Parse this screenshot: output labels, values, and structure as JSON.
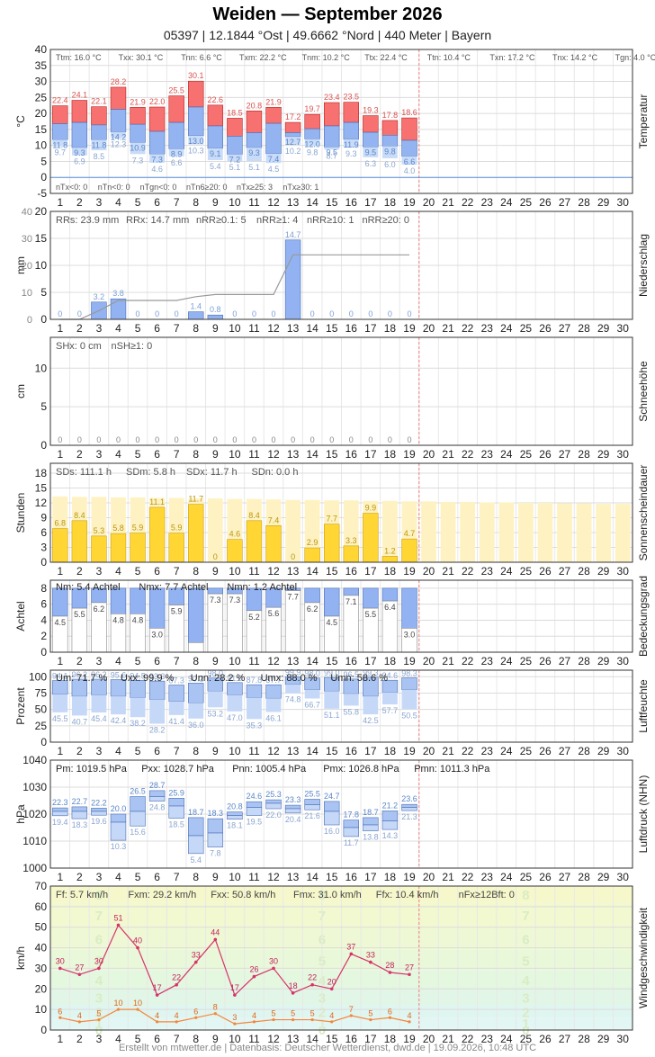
{
  "header": {
    "title": "Weiden  —  September 2026",
    "subtitle": "05397  |  12.1844 °Ost  |  49.6662 °Nord  |  440 Meter  |  Bayern"
  },
  "footer": "Erstellt von mtwetter.de | Datenbasis: Deutscher Wetterdienst, dwd.de | 19.09.2026, 10:48 UTC",
  "days": [
    "1",
    "2",
    "3",
    "4",
    "5",
    "6",
    "7",
    "8",
    "9",
    "10",
    "11",
    "12",
    "13",
    "14",
    "15",
    "16",
    "17",
    "18",
    "19",
    "20",
    "21",
    "22",
    "23",
    "24",
    "25",
    "26",
    "27",
    "28",
    "29",
    "30"
  ],
  "colors": {
    "temp_max": "#f87171",
    "temp_mid": "#93b4f0",
    "temp_min": "#c8dbf8",
    "precip": "#93b2f2",
    "sun": "#ffd633",
    "sun_pot": "#fff2c2",
    "cloud": "#93b2f2",
    "wind_mean": "#d6336c",
    "wind_gust_low": "#f4863c"
  },
  "chart_data": [
    {
      "type": "bar",
      "id": "temperatur",
      "ylabel": "°C",
      "side_label": "Temperatur",
      "ylim": [
        -5,
        40
      ],
      "yticks": [
        -5,
        0,
        5,
        10,
        15,
        20,
        25,
        30,
        35,
        40
      ],
      "stats_top": [
        "Ttm: 16.0 °C",
        "Txx: 30.1 °C",
        "Tnn: 6.6 °C",
        "Txm: 22.2 °C",
        "Tnm: 10.2 °C",
        "Ttx: 22.4 °C",
        "Ttn: 10.4 °C",
        "Txn: 17.2 °C",
        "Tnx: 14.2 °C",
        "Tgn: 4.0 °C"
      ],
      "stats_bottom": [
        "nTx<0: 0",
        "nTn<0: 0",
        "nTgn<0: 0",
        "nTn6≥20: 0",
        "nTx≥25: 3",
        "nTx≥30: 1"
      ],
      "tmax": [
        22.4,
        24.1,
        22.1,
        28.2,
        21.9,
        22.0,
        25.5,
        30.1,
        22.6,
        18.5,
        20.8,
        21.9,
        17.2,
        19.7,
        23.4,
        23.5,
        19.3,
        17.8,
        18.6
      ],
      "tmean": [
        16.8,
        17.2,
        16.4,
        21.3,
        16.6,
        14.4,
        17.2,
        22.0,
        16.1,
        12.9,
        14.0,
        16.9,
        14.0,
        15.2,
        16.1,
        17.2,
        14.1,
        13.2,
        11.6
      ],
      "tmin_label": [
        11.8,
        9.3,
        11.8,
        14.2,
        10.9,
        7.3,
        8.9,
        13.0,
        9.1,
        7.2,
        9.3,
        7.4,
        12.7,
        12.0,
        9.5,
        11.9,
        9.5,
        9.8,
        6.6
      ],
      "tmin_bar": [
        11.8,
        9.3,
        11.8,
        14.2,
        10.9,
        7.3,
        8.9,
        13.0,
        9.1,
        7.2,
        9.3,
        7.4,
        12.7,
        12.0,
        9.5,
        11.9,
        9.5,
        9.8,
        6.6
      ],
      "tground": [
        9.7,
        6.9,
        8.5,
        12.3,
        7.3,
        4.6,
        6.6,
        10.3,
        5.4,
        5.1,
        5.1,
        4.5,
        10.2,
        9.8,
        8.7,
        9.3,
        6.3,
        6.0,
        4.0
      ],
      "tmin_mark": [
        11.8,
        9.3,
        11.8,
        14.2,
        10.9,
        7.3,
        8.9,
        13.0,
        9.1,
        7.2,
        9.3,
        7.4,
        12.7,
        12.0,
        9.5,
        11.9,
        9.5,
        9.8,
        6.6
      ]
    },
    {
      "type": "bar",
      "id": "niederschlag",
      "ylabel": "mm",
      "side_label": "Niederschlag",
      "ylim": [
        0,
        20
      ],
      "yticks": [
        0,
        5,
        10,
        15,
        20
      ],
      "yticks_right": [
        0,
        10,
        20,
        30,
        40
      ],
      "stats_top": [
        "RRs: 23.9 mm",
        "RRx: 14.7 mm",
        "nRR≥0.1: 5",
        "nRR≥1: 4",
        "nRR≥10: 1",
        "nRR≥20: 0"
      ],
      "values": [
        0,
        0,
        3.2,
        3.8,
        0,
        0,
        0,
        1.4,
        0.8,
        0,
        0,
        0,
        14.7,
        0,
        0,
        0,
        0,
        0,
        0
      ],
      "cumulative": [
        0,
        0,
        3.2,
        7.0,
        7.0,
        7.0,
        7.0,
        8.4,
        9.2,
        9.2,
        9.2,
        9.2,
        23.9,
        23.9,
        23.9,
        23.9,
        23.9,
        23.9,
        23.9
      ]
    },
    {
      "type": "bar",
      "id": "schneehoehe",
      "ylabel": "cm",
      "side_label": "Schneehöhe",
      "ylim": [
        0,
        14
      ],
      "yticks": [
        0,
        5,
        10
      ],
      "stats_top": [
        "SHx: 0 cm",
        "nSH≥1: 0"
      ],
      "values": [
        0,
        0,
        0,
        0,
        0,
        0,
        0,
        0,
        0,
        0,
        0,
        0,
        0,
        0,
        0,
        0,
        0,
        0,
        0
      ]
    },
    {
      "type": "bar",
      "id": "sonnenscheindauer",
      "ylabel": "Stunden",
      "side_label": "Sonnenscheindauer",
      "ylim": [
        0,
        20
      ],
      "yticks": [
        0,
        3,
        6,
        9,
        12,
        15,
        18
      ],
      "stats_top": [
        "SDs: 111.1 h",
        "SDm: 5.8 h",
        "SDx: 11.7 h",
        "SDn: 0.0 h"
      ],
      "values": [
        6.8,
        8.4,
        5.3,
        5.8,
        5.9,
        11.1,
        5.9,
        11.7,
        0,
        4.6,
        8.4,
        7.4,
        0,
        2.9,
        7.7,
        3.3,
        9.9,
        1.2,
        4.7
      ],
      "possible": [
        13.3,
        13.2,
        13.2,
        13.1,
        13.1,
        13.0,
        13.0,
        12.9,
        12.9,
        12.8,
        12.8,
        12.7,
        12.6,
        12.6,
        12.5,
        12.5,
        12.4,
        12.4,
        12.3,
        12.3,
        12.2,
        12.2,
        12.1,
        12.1,
        12.0,
        12.0,
        11.9,
        11.9,
        11.8,
        11.8
      ]
    },
    {
      "type": "bar",
      "id": "bedeckungsgrad",
      "ylabel": "Achtel",
      "side_label": "Bedeckungsgrad",
      "ylim": [
        0,
        9
      ],
      "yticks": [
        0,
        2,
        4,
        6,
        8
      ],
      "stats_top": [
        "Nm: 5.4 Achtel",
        "Nmx: 7.7 Achtel",
        "Nmn: 1.2 Achtel"
      ],
      "values": [
        4.5,
        5.5,
        6.2,
        4.8,
        4.8,
        3.0,
        5.9,
        1.2,
        7.3,
        7.3,
        5.2,
        5.6,
        7.7,
        6.2,
        4.5,
        7.1,
        5.5,
        6.4,
        3.0
      ]
    },
    {
      "type": "bar",
      "id": "luftfeuchte",
      "ylabel": "Prozent",
      "side_label": "Luftfeuchte",
      "ylim": [
        0,
        110
      ],
      "yticks": [
        0,
        25,
        50,
        75,
        100
      ],
      "stats_top": [
        "Um: 71.7 %",
        "Uxx: 99.9 %",
        "Unn: 28.2 %",
        "Umx: 88.0 %",
        "Umn: 58.6 %"
      ],
      "umax": [
        94.1,
        96.2,
        96.2,
        95.6,
        94.5,
        93.3,
        87.3,
        90.2,
        98.0,
        91.0,
        87.8,
        87.7,
        99.9,
        98.0,
        99.0,
        96.5,
        99.3,
        94.6,
        98.3
      ],
      "umean": [
        73,
        70,
        72,
        70,
        68,
        65,
        62,
        60,
        78,
        72,
        68,
        67,
        88,
        80,
        78,
        74,
        70,
        76,
        80
      ],
      "umin": [
        45.5,
        40.7,
        45.4,
        42.4,
        38.2,
        28.2,
        41.4,
        36.0,
        53.2,
        47.0,
        35.3,
        46.1,
        74.8,
        66.7,
        51.1,
        55.8,
        42.5,
        57.7,
        50.5
      ]
    },
    {
      "type": "bar",
      "id": "luftdruck",
      "ylabel": "hPa",
      "side_label": "Luftdruck (NHN)",
      "ylim": [
        1000,
        1040
      ],
      "yticks": [
        1000,
        1010,
        1020,
        1030,
        1040
      ],
      "stats_top": [
        "Pm: 1019.5 hPa",
        "Pxx: 1028.7 hPa",
        "Pnn: 1005.4 hPa",
        "Pmx: 1026.8 hPa",
        "Pmn: 1011.3 hPa"
      ],
      "pmax": [
        22.3,
        22.7,
        22.2,
        20.0,
        26.5,
        28.7,
        25.9,
        18.7,
        18.3,
        20.8,
        24.6,
        25.3,
        23.3,
        25.5,
        24.7,
        17.8,
        18.7,
        21.2,
        23.6
      ],
      "pmean": [
        21.0,
        21.0,
        21.0,
        17.0,
        21.0,
        26.5,
        23.0,
        12.0,
        13.0,
        19.5,
        22.5,
        24.0,
        22.0,
        23.5,
        21.0,
        15.0,
        16.0,
        17.5,
        22.5
      ],
      "pmin": [
        19.4,
        18.3,
        19.6,
        10.3,
        15.6,
        24.8,
        18.5,
        5.4,
        7.8,
        18.1,
        19.5,
        22.0,
        20.4,
        21.6,
        16.0,
        11.7,
        13.8,
        14.3,
        21.3
      ]
    },
    {
      "type": "line",
      "id": "windgeschwindigkeit",
      "ylabel": "km/h",
      "side_label": "Windgeschwindigkeit",
      "ylim": [
        0,
        70
      ],
      "yticks": [
        0,
        10,
        20,
        30,
        40,
        50,
        60,
        70
      ],
      "stats_top": [
        "Ff: 5.7 km/h",
        "Fxm: 29.2 km/h",
        "Fxx: 50.8 km/h",
        "Fmx: 31.0 km/h",
        "Ffx: 10.4 km/h",
        "nFx≥12Bft: 0"
      ],
      "gusts": [
        30,
        27,
        30,
        51,
        40,
        17,
        22,
        33,
        44,
        17,
        26,
        30,
        18,
        22,
        20,
        37,
        33,
        28,
        27
      ],
      "mean": [
        6,
        4,
        5,
        10,
        10,
        4,
        4,
        6,
        8,
        3,
        4,
        5,
        5,
        5,
        4,
        7,
        5,
        6,
        4
      ],
      "bft_bands": [
        {
          "from": 0,
          "to": 1,
          "label": "0",
          "color": "#e6f7f7"
        },
        {
          "from": 1,
          "to": 6,
          "label": "1",
          "color": "#e2f6f4"
        },
        {
          "from": 6,
          "to": 12,
          "label": "2",
          "color": "#dff5ef"
        },
        {
          "from": 12,
          "to": 20,
          "label": "3",
          "color": "#e1f6e6"
        },
        {
          "from": 20,
          "to": 29,
          "label": "4",
          "color": "#e4f7df"
        },
        {
          "from": 29,
          "to": 39,
          "label": "5",
          "color": "#e9f8d9"
        },
        {
          "from": 39,
          "to": 50,
          "label": "6",
          "color": "#eef8d4"
        },
        {
          "from": 50,
          "to": 62,
          "label": "7",
          "color": "#f2f8cf"
        },
        {
          "from": 62,
          "to": 70,
          "label": "8",
          "color": "#f6f8cb"
        }
      ]
    }
  ]
}
